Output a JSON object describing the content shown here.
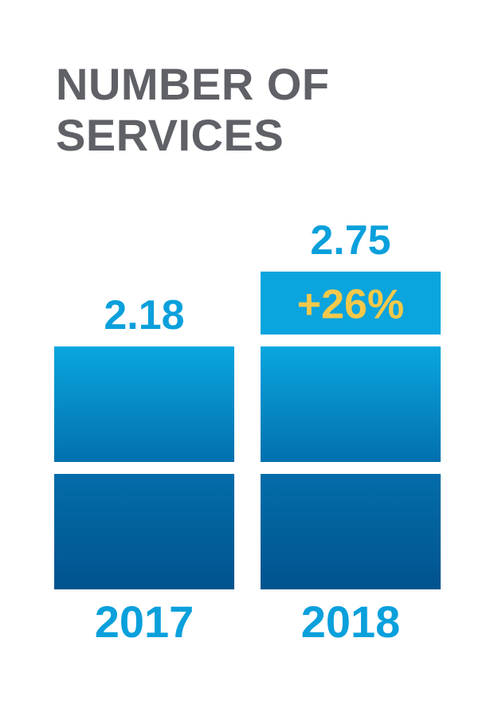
{
  "title": {
    "line1": "NUMBER OF",
    "line2": "SERVICES"
  },
  "colors": {
    "title": "#5f6167",
    "value_label": "#0aa0dc",
    "year_label": "#0aa0dc",
    "increase_block": "#0aa4de",
    "increase_text": "#f4c84a",
    "upper_gradient_top": "#0aa6df",
    "upper_gradient_bottom": "#0270ae",
    "lower_gradient_top": "#036da9",
    "lower_gradient_bottom": "#01538f"
  },
  "chart_data": {
    "type": "bar",
    "title": "NUMBER OF SERVICES",
    "categories": [
      "2017",
      "2018"
    ],
    "values": [
      2.18,
      2.75
    ],
    "value_labels": [
      "2.18",
      "2.75"
    ],
    "annotations": [
      {
        "category": "2018",
        "text": "+26%"
      }
    ],
    "ylim": [
      0,
      2.75
    ],
    "grid": false,
    "legend": "none"
  }
}
